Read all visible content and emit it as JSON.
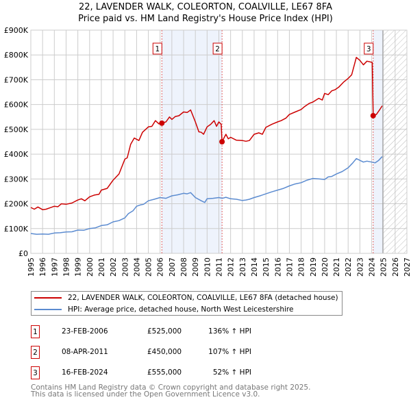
{
  "title": "22, LAVENDER WALK, COLEORTON, COALVILLE, LE67 8FA",
  "subtitle": "Price paid vs. HM Land Registry's House Price Index (HPI)",
  "chart_data": {
    "type": "line",
    "title": "22, LAVENDER WALK, COLEORTON, COALVILLE, LE67 8FA",
    "subtitle": "Price paid vs. HM Land Registry's House Price Index (HPI)",
    "xlim": [
      1995,
      2027
    ],
    "ylim": [
      0,
      900000
    ],
    "x_ticks": [
      "1995",
      "1996",
      "1997",
      "1998",
      "1999",
      "2000",
      "2001",
      "2002",
      "2003",
      "2004",
      "2005",
      "2006",
      "2007",
      "2008",
      "2009",
      "2010",
      "2011",
      "2012",
      "2013",
      "2014",
      "2015",
      "2016",
      "2017",
      "2018",
      "2019",
      "2020",
      "2021",
      "2022",
      "2023",
      "2024",
      "2025",
      "2026",
      "2027"
    ],
    "y_ticks": [
      {
        "v": 0,
        "label": "£0"
      },
      {
        "v": 100000,
        "label": "£100K"
      },
      {
        "v": 200000,
        "label": "£200K"
      },
      {
        "v": 300000,
        "label": "£300K"
      },
      {
        "v": 400000,
        "label": "£400K"
      },
      {
        "v": 500000,
        "label": "£500K"
      },
      {
        "v": 600000,
        "label": "£600K"
      },
      {
        "v": 700000,
        "label": "£700K"
      },
      {
        "v": 800000,
        "label": "£800K"
      },
      {
        "v": 900000,
        "label": "£900K"
      }
    ],
    "grid": true,
    "forecast_from": 2024.95,
    "series": [
      {
        "name": "22, LAVENDER WALK, COLEORTON, COALVILLE, LE67 8FA (detached house)",
        "color": "#cc0000",
        "x": [
          1995,
          1995.3,
          1995.6,
          1996,
          1996.3,
          1996.6,
          1997,
          1997.3,
          1997.6,
          1998,
          1998.5,
          1999,
          1999.3,
          1999.6,
          2000,
          2000.4,
          2000.8,
          2001,
          2001.5,
          2002,
          2002.5,
          2003,
          2003.2,
          2003.5,
          2003.8,
          2004,
          2004.2,
          2004.5,
          2005,
          2005.3,
          2005.6,
          2005.9,
          2006.15,
          2006.5,
          2006.8,
          2007,
          2007.3,
          2007.6,
          2008,
          2008.3,
          2008.6,
          2009,
          2009.3,
          2009.5,
          2009.7,
          2010,
          2010.3,
          2010.6,
          2010.8,
          2011.0,
          2011.2,
          2011.27,
          2011.6,
          2011.8,
          2012,
          2012.5,
          2013,
          2013.3,
          2013.6,
          2014,
          2014.4,
          2014.7,
          2015,
          2015.5,
          2016,
          2016.3,
          2016.7,
          2017,
          2017.5,
          2018,
          2018.3,
          2018.7,
          2019,
          2019.5,
          2019.8,
          2020,
          2020.3,
          2020.6,
          2020.9,
          2021.2,
          2021.6,
          2022,
          2022.3,
          2022.7,
          2023,
          2023.3,
          2023.6,
          2024.05,
          2024.13,
          2024.4,
          2024.7,
          2024.9
        ],
        "y": [
          185000,
          178000,
          187000,
          176000,
          178000,
          183000,
          190000,
          188000,
          200000,
          198000,
          203000,
          215000,
          220000,
          212000,
          228000,
          235000,
          238000,
          255000,
          262000,
          295000,
          320000,
          380000,
          385000,
          440000,
          465000,
          460000,
          455000,
          488000,
          510000,
          512000,
          535000,
          522000,
          525000,
          530000,
          550000,
          540000,
          552000,
          555000,
          570000,
          568000,
          578000,
          530000,
          490000,
          488000,
          480000,
          510000,
          520000,
          535000,
          512000,
          530000,
          520000,
          450000,
          480000,
          462000,
          468000,
          456000,
          455000,
          452000,
          455000,
          480000,
          486000,
          480000,
          508000,
          520000,
          530000,
          535000,
          545000,
          560000,
          570000,
          580000,
          592000,
          605000,
          610000,
          625000,
          618000,
          645000,
          640000,
          655000,
          660000,
          670000,
          690000,
          705000,
          720000,
          790000,
          778000,
          760000,
          775000,
          770000,
          555000,
          560000,
          580000,
          595000
        ]
      },
      {
        "name": "HPI: Average price, detached house, North West Leicestershire",
        "color": "#5b8bd0",
        "x": [
          1995,
          1995.5,
          1996,
          1996.5,
          1997,
          1997.5,
          1998,
          1998.5,
          1999,
          1999.5,
          2000,
          2000.5,
          2001,
          2001.5,
          2002,
          2002.5,
          2003,
          2003.3,
          2003.7,
          2004,
          2004.3,
          2004.6,
          2005,
          2005.5,
          2006,
          2006.5,
          2006.8,
          2007,
          2007.5,
          2008,
          2008.3,
          2008.6,
          2009,
          2009.5,
          2009.8,
          2010,
          2010.5,
          2011,
          2011.3,
          2011.6,
          2012,
          2012.5,
          2013,
          2013.3,
          2013.6,
          2014,
          2014.5,
          2015,
          2015.5,
          2016,
          2016.5,
          2017,
          2017.5,
          2018,
          2018.5,
          2019,
          2019.5,
          2020,
          2020.3,
          2020.6,
          2021,
          2021.5,
          2022,
          2022.4,
          2022.7,
          2023,
          2023.3,
          2023.6,
          2024,
          2024.3,
          2024.6,
          2024.9
        ],
        "y": [
          80000,
          77000,
          78000,
          77000,
          82000,
          83000,
          86000,
          87000,
          94000,
          93000,
          100000,
          103000,
          112000,
          115000,
          127000,
          132000,
          143000,
          160000,
          172000,
          190000,
          195000,
          198000,
          212000,
          218000,
          225000,
          222000,
          228000,
          232000,
          236000,
          242000,
          240000,
          245000,
          225000,
          212000,
          205000,
          220000,
          222000,
          225000,
          222000,
          226000,
          220000,
          218000,
          213000,
          215000,
          218000,
          225000,
          232000,
          240000,
          248000,
          255000,
          262000,
          272000,
          280000,
          285000,
          295000,
          302000,
          300000,
          298000,
          308000,
          310000,
          320000,
          330000,
          345000,
          365000,
          382000,
          375000,
          368000,
          372000,
          368000,
          365000,
          375000,
          390000
        ]
      }
    ],
    "sales": [
      {
        "id": "1",
        "x": 2006.15,
        "y": 525000
      },
      {
        "id": "2",
        "x": 2011.27,
        "y": 450000
      },
      {
        "id": "3",
        "x": 2024.13,
        "y": 555000
      }
    ]
  },
  "legend": [
    {
      "label": "22, LAVENDER WALK, COLEORTON, COALVILLE, LE67 8FA (detached house)",
      "color": "#cc0000"
    },
    {
      "label": "HPI: Average price, detached house, North West Leicestershire",
      "color": "#5b8bd0"
    }
  ],
  "transactions": [
    {
      "num": "1",
      "date": "23-FEB-2006",
      "price": "£525,000",
      "hpi": "136% ↑ HPI"
    },
    {
      "num": "2",
      "date": "08-APR-2011",
      "price": "£450,000",
      "hpi": "107% ↑ HPI"
    },
    {
      "num": "3",
      "date": "16-FEB-2024",
      "price": "£555,000",
      "hpi": "52% ↑ HPI"
    }
  ],
  "footer": [
    "Contains HM Land Registry data © Crown copyright and database right 2025.",
    "This data is licensed under the Open Government Licence v3.0."
  ]
}
